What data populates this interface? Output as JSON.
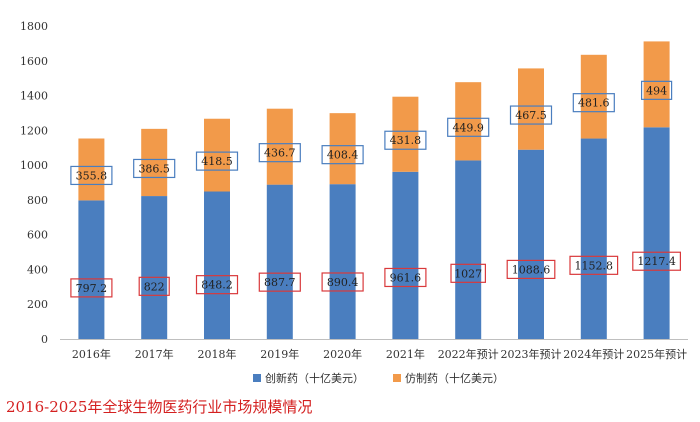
{
  "chart_data": {
    "type": "bar",
    "stacked": true,
    "categories": [
      "2016年",
      "2017年",
      "2018年",
      "2019年",
      "2020年",
      "2021年",
      "2022年预计",
      "2023年预计",
      "2024年预计",
      "2025年预计"
    ],
    "series": [
      {
        "name": "创新药（十亿美元）",
        "color": "#4a7ebf",
        "label_box_color": "#d9393b",
        "values": [
          797.2,
          822,
          848.2,
          887.7,
          890.4,
          961.6,
          1027,
          1088.6,
          1152.8,
          1217.4
        ]
      },
      {
        "name": "仿制药（十亿美元）",
        "color": "#f29a4a",
        "label_box_color": "#4a7ebf",
        "values": [
          355.8,
          386.5,
          418.5,
          436.7,
          408.4,
          431.8,
          449.9,
          467.5,
          481.6,
          494
        ]
      }
    ],
    "ylim": [
      0,
      1800
    ],
    "yticks": [
      0,
      200,
      400,
      600,
      800,
      1000,
      1200,
      1400,
      1600,
      1800
    ],
    "legend_position": "bottom",
    "grid": false
  },
  "caption": "2016-2025年全球生物医药行业市场规模情况"
}
